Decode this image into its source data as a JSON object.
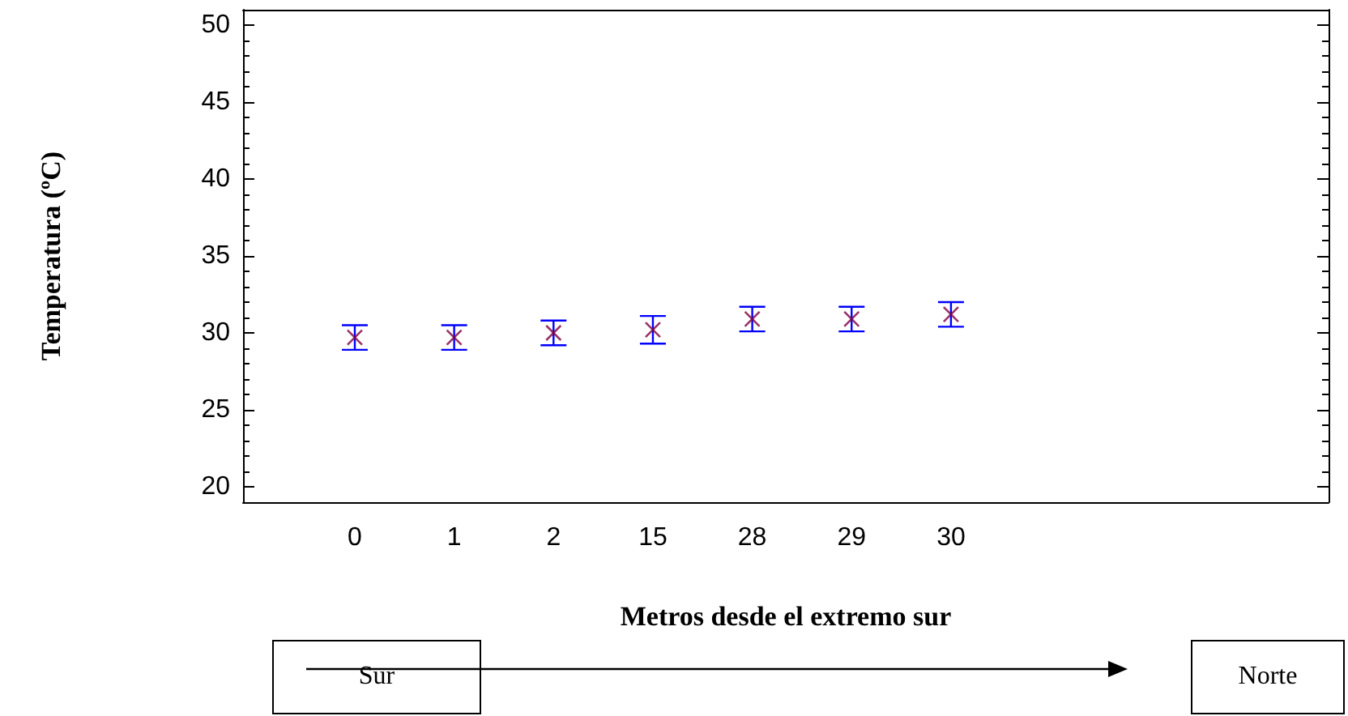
{
  "chart_data": {
    "type": "scatter",
    "xlabel": "Metros desde el extremo sur",
    "ylabel": "Temperatura (ºC)",
    "categories": [
      "0",
      "1",
      "2",
      "15",
      "28",
      "29",
      "30"
    ],
    "series": [
      {
        "color": "#800040",
        "values": [
          29.7,
          29.7,
          30.0,
          30.2,
          30.9,
          30.9,
          31.2
        ],
        "errors": [
          0.8,
          0.8,
          0.8,
          0.9,
          0.8,
          0.8,
          0.8
        ]
      }
    ],
    "ylim": [
      19,
      51
    ],
    "yticks": [
      20,
      25,
      30,
      35,
      40,
      45,
      50
    ],
    "grid": false,
    "marker": "cross",
    "annotations": [
      "Sur",
      "Norte"
    ]
  }
}
